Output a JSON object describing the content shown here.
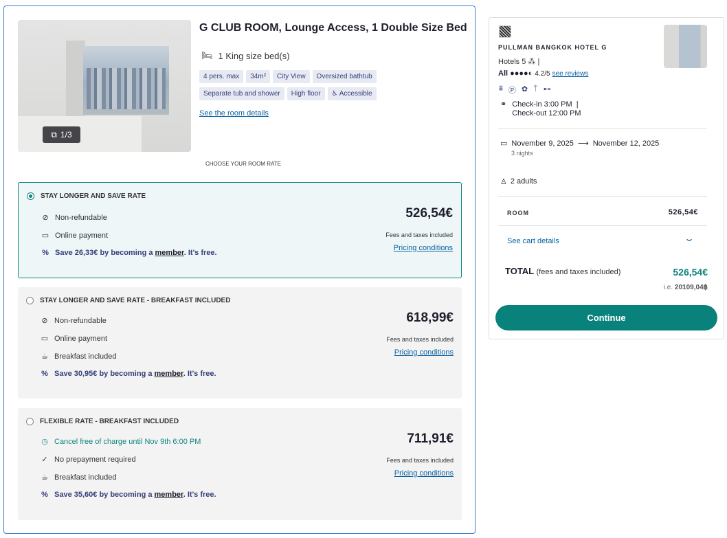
{
  "room": {
    "title": "G CLUB ROOM, Lounge Access, 1 Double Size Bed",
    "bed": "1 King size bed(s)",
    "photo_counter": "1/3",
    "tags": [
      "4 pers. max",
      "34m²",
      "City View",
      "Oversized bathtub",
      "Separate tub and shower",
      "High floor",
      "Accessible"
    ],
    "details_link": "See the room details",
    "choose_label": "CHOOSE YOUR ROOM RATE"
  },
  "rates": [
    {
      "name": "STAY LONGER AND SAVE RATE",
      "selected": true,
      "features": [
        "Non-refundable",
        "Online payment"
      ],
      "save_pre": "Save 26,33€ by becoming a ",
      "save_link": "member",
      "save_post": ". It's free.",
      "price": "526,54€",
      "fees": "Fees and taxes included",
      "conditions": "Pricing conditions"
    },
    {
      "name": "STAY LONGER AND SAVE RATE - BREAKFAST INCLUDED",
      "selected": false,
      "features": [
        "Non-refundable",
        "Online payment",
        "Breakfast included"
      ],
      "save_pre": "Save 30,95€ by becoming a ",
      "save_link": "member",
      "save_post": ". It's free.",
      "price": "618,99€",
      "fees": "Fees and taxes included",
      "conditions": "Pricing conditions"
    },
    {
      "name": "FLEXIBLE RATE - BREAKFAST INCLUDED",
      "selected": false,
      "features": [
        "Cancel free of charge until Nov 9th 6:00 PM",
        "No prepayment required",
        "Breakfast included"
      ],
      "save_pre": "Save 35,60€ by becoming a ",
      "save_link": "member",
      "save_post": ". It's free.",
      "price": "711,91€",
      "fees": "Fees and taxes included",
      "conditions": "Pricing conditions"
    }
  ],
  "summary": {
    "hotel_name": "PULLMAN BANGKOK HOTEL G",
    "category": "Hotels 5",
    "rating_brand": "All",
    "rating": "4.2/5",
    "rating_value": 4.2,
    "reviews_link": "see reviews",
    "checkin": "Check-in 3:00 PM",
    "checkout": "Check-out 12:00 PM",
    "date_from": "November 9, 2025",
    "date_to": "November 12, 2025",
    "nights": "3 nights",
    "guests": "2 adults",
    "room_label": "ROOM",
    "room_price": "526,54€",
    "cart_link": "See cart details",
    "total_label": "TOTAL",
    "total_note": "(fees and taxes included)",
    "total_price": "526,54€",
    "ie_prefix": "i.e.",
    "ie_value": "20109,04฿",
    "continue": "Continue"
  },
  "colors": {
    "accent": "#0a827c",
    "link": "#0b62a3",
    "member": "#36407a"
  }
}
